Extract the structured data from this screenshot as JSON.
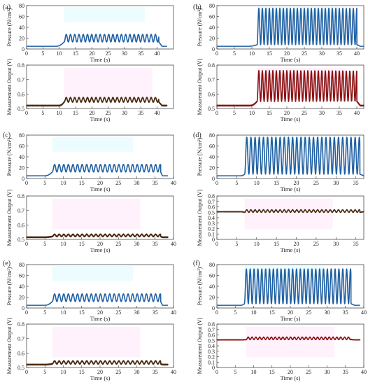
{
  "figure": {
    "panels": [
      {
        "id": "a",
        "label": "(a)"
      },
      {
        "id": "b",
        "label": "(b)"
      },
      {
        "id": "c",
        "label": "(c)"
      },
      {
        "id": "d",
        "label": "(d)"
      },
      {
        "id": "e",
        "label": "(e)"
      },
      {
        "id": "f",
        "label": "(f)"
      }
    ]
  },
  "chart_data": [
    {
      "panel": "(a)",
      "kind": "pressure",
      "type": "line",
      "xlabel": "Time (s)",
      "ylabel": "Pressure (N/cm²)",
      "xlim": [
        0,
        45
      ],
      "ylim": [
        0,
        80
      ],
      "xticks": [
        0,
        5,
        10,
        15,
        20,
        25,
        30,
        35,
        40
      ],
      "yticks": [
        0,
        20,
        40,
        60,
        80
      ],
      "color": "#1f5fa3",
      "series": {
        "baseline": 5,
        "rise_start": 9,
        "osc_start": 11.5,
        "osc_end": 40.5,
        "fall_end": 41.5,
        "low": 13,
        "high": 27,
        "period": 1.3
      }
    },
    {
      "panel": "(a)",
      "kind": "measurement",
      "type": "line",
      "xlabel": "Time (s)",
      "ylabel": "Measurement Output (V)",
      "xlim": [
        0,
        45
      ],
      "ylim": [
        0.5,
        0.8
      ],
      "xticks": [
        0,
        5,
        10,
        15,
        20,
        25,
        30,
        35,
        40
      ],
      "yticks": [
        0.5,
        0.6,
        0.7,
        0.8
      ],
      "color": "#4a2a10",
      "series": {
        "baseline": 0.52,
        "rise_start": 10,
        "osc_start": 11.5,
        "osc_end": 40.5,
        "fall_end": 41.5,
        "low": 0.545,
        "high": 0.575,
        "period": 1.3
      }
    },
    {
      "panel": "(b)",
      "kind": "pressure",
      "type": "line",
      "xlabel": "Time (s)",
      "ylabel": "Pressure (N/cm²)",
      "xlim": [
        0,
        42
      ],
      "ylim": [
        0,
        80
      ],
      "xticks": [
        0,
        5,
        10,
        15,
        20,
        25,
        30,
        35,
        40
      ],
      "yticks": [
        0,
        20,
        40,
        60,
        80
      ],
      "color": "#1f5fa3",
      "series": {
        "baseline": 5,
        "rise_start": 9,
        "osc_start": 11.5,
        "osc_end": 40.0,
        "fall_end": 41.0,
        "low": 8,
        "high": 75,
        "period": 1.0
      }
    },
    {
      "panel": "(b)",
      "kind": "measurement",
      "type": "line",
      "xlabel": "Time (s)",
      "ylabel": "Measurement Output (V)",
      "xlim": [
        0,
        42
      ],
      "ylim": [
        0.5,
        0.8
      ],
      "xticks": [
        0,
        5,
        10,
        15,
        20,
        25,
        30,
        35,
        40
      ],
      "yticks": [
        0.5,
        0.6,
        0.7,
        0.8
      ],
      "color": "#8b1010",
      "series": {
        "baseline": 0.52,
        "rise_start": 9.5,
        "osc_start": 11.5,
        "osc_end": 40.0,
        "fall_end": 41.0,
        "low": 0.55,
        "high": 0.76,
        "period": 1.0
      }
    },
    {
      "panel": "(c)",
      "kind": "pressure",
      "type": "line",
      "xlabel": "Time (s)",
      "ylabel": "Pressure (N/cm²)",
      "xlim": [
        0,
        40
      ],
      "ylim": [
        0,
        80
      ],
      "xticks": [
        0,
        5,
        10,
        15,
        20,
        25,
        30,
        35,
        40
      ],
      "yticks": [
        0,
        20,
        40,
        60,
        80
      ],
      "color": "#1f5fa3",
      "series": {
        "baseline": 5,
        "rise_start": 5,
        "osc_start": 7.0,
        "osc_end": 36.5,
        "fall_end": 37.0,
        "low": 12,
        "high": 26,
        "period": 1.25
      }
    },
    {
      "panel": "(c)",
      "kind": "measurement",
      "type": "line",
      "xlabel": "Time (s)",
      "ylabel": "Measurement Output (V)",
      "xlim": [
        0,
        40
      ],
      "ylim": [
        0.5,
        0.8
      ],
      "xticks": [
        0,
        5,
        10,
        15,
        20,
        25,
        30,
        35,
        40
      ],
      "yticks": [
        0.5,
        0.6,
        0.7,
        0.8
      ],
      "color": "#4a2a10",
      "series": {
        "baseline": 0.515,
        "rise_start": 5,
        "osc_start": 7.0,
        "osc_end": 36.5,
        "fall_end": 37.0,
        "low": 0.52,
        "high": 0.535,
        "period": 1.25
      }
    },
    {
      "panel": "(d)",
      "kind": "pressure",
      "type": "line",
      "xlabel": "Time (s)",
      "ylabel": "Pressure (N/cm²)",
      "xlim": [
        0,
        37
      ],
      "ylim": [
        0,
        80
      ],
      "xticks": [
        0,
        5,
        10,
        15,
        20,
        25,
        30,
        35
      ],
      "yticks": [
        0,
        20,
        40,
        60,
        80
      ],
      "color": "#1f5fa3",
      "series": {
        "baseline": 5,
        "rise_start": 6,
        "osc_start": 7.0,
        "osc_end": 36.0,
        "fall_end": 37.0,
        "low": 8,
        "high": 76,
        "period": 1.05
      }
    },
    {
      "panel": "(d)",
      "kind": "measurement",
      "type": "line",
      "xlabel": "Time (s)",
      "ylabel": "Measurement Output (V)",
      "xlim": [
        0,
        37
      ],
      "ylim": [
        0,
        0.8
      ],
      "xticks": [
        0,
        5,
        10,
        15,
        20,
        25,
        30,
        35
      ],
      "yticks": [
        0,
        0.1,
        0.2,
        0.3,
        0.4,
        0.5,
        0.6,
        0.7,
        0.8
      ],
      "ytick_labels": [
        "0",
        "0.1",
        "0.2",
        "0.3",
        "0.4",
        "0.5",
        "0.6",
        "0.7",
        "0.8"
      ],
      "color": "#4a2a10",
      "series": {
        "baseline": 0.51,
        "rise_start": 6,
        "osc_start": 7.0,
        "osc_end": 36.0,
        "fall_end": 37.0,
        "low": 0.5,
        "high": 0.545,
        "period": 1.05
      }
    },
    {
      "panel": "(e)",
      "kind": "pressure",
      "type": "line",
      "xlabel": "Time (s)",
      "ylabel": "Pressure (N/cm²)",
      "xlim": [
        0,
        40
      ],
      "ylim": [
        0,
        80
      ],
      "xticks": [
        0,
        5,
        10,
        15,
        20,
        25,
        30,
        35,
        40
      ],
      "yticks": [
        0,
        20,
        40,
        60,
        80
      ],
      "color": "#1f5fa3",
      "series": {
        "baseline": 5,
        "rise_start": 5,
        "osc_start": 7.0,
        "osc_end": 36.5,
        "fall_end": 37.0,
        "low": 12,
        "high": 26,
        "period": 1.25
      }
    },
    {
      "panel": "(e)",
      "kind": "measurement",
      "type": "line",
      "xlabel": "Time (s)",
      "ylabel": "Measurement Output (V)",
      "xlim": [
        0,
        40
      ],
      "ylim": [
        0.5,
        0.8
      ],
      "xticks": [
        0,
        5,
        10,
        15,
        20,
        25,
        30,
        35,
        40
      ],
      "yticks": [
        0.5,
        0.6,
        0.7,
        0.8
      ],
      "color": "#4a2a10",
      "series": {
        "baseline": 0.52,
        "rise_start": 5,
        "osc_start": 7.0,
        "osc_end": 36.5,
        "fall_end": 37.0,
        "low": 0.525,
        "high": 0.545,
        "period": 1.25
      }
    },
    {
      "panel": "(f)",
      "kind": "pressure",
      "type": "line",
      "xlabel": "Time (s)",
      "ylabel": "Pressure (N/cm²)",
      "xlim": [
        0,
        40
      ],
      "ylim": [
        0,
        80
      ],
      "xticks": [
        0,
        5,
        10,
        15,
        20,
        25,
        30,
        35,
        40
      ],
      "yticks": [
        0,
        20,
        40,
        60,
        80
      ],
      "color": "#1f5fa3",
      "series": {
        "baseline": 5,
        "rise_start": 6.5,
        "osc_start": 7.5,
        "osc_end": 36.5,
        "fall_end": 37.5,
        "low": 8,
        "high": 72,
        "period": 1.05
      }
    },
    {
      "panel": "(f)",
      "kind": "measurement",
      "type": "line",
      "xlabel": "Time (s)",
      "ylabel": "Measurement Output (V)",
      "xlim": [
        0,
        40
      ],
      "ylim": [
        0,
        0.8
      ],
      "xticks": [
        0,
        5,
        10,
        15,
        20,
        25,
        30,
        35,
        40
      ],
      "yticks": [
        0,
        0.1,
        0.2,
        0.3,
        0.4,
        0.5,
        0.6,
        0.7,
        0.8
      ],
      "ytick_labels": [
        "0",
        "0.1",
        "0.2",
        "0.3",
        "0.4",
        "0.5",
        "0.6",
        "0.7",
        "0.8"
      ],
      "color": "#8b1010",
      "series": {
        "baseline": 0.51,
        "rise_start": 7,
        "osc_start": 8.0,
        "osc_end": 36.5,
        "fall_end": 37.5,
        "low": 0.515,
        "high": 0.56,
        "period": 1.05
      }
    }
  ]
}
